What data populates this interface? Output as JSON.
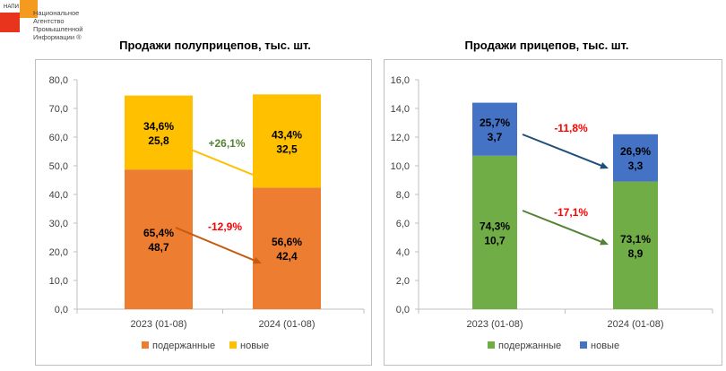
{
  "logo": {
    "abbr": "НАПИ",
    "org_lines": [
      "Национальное",
      "Агентство",
      "Промышленной",
      "Информации ®"
    ]
  },
  "colors": {
    "used_orange": "#ed7d31",
    "new_yellow": "#ffc000",
    "used_green": "#70ad47",
    "new_blue": "#4472c4",
    "up_label": "#548235",
    "down_label": "#ff0000",
    "arrow_yellow": "#ffc000",
    "arrow_brown": "#c55a11",
    "arrow_navy": "#1f4e79",
    "arrow_green": "#548235"
  },
  "chart_data": [
    {
      "type": "bar",
      "stacked": true,
      "title": "Продажи полуприцепов, тыс. шт.",
      "categories": [
        "2023 (01-08)",
        "2024 (01-08)"
      ],
      "series": [
        {
          "name": "подержанные",
          "values": [
            48.7,
            42.4
          ],
          "shares": [
            "65,4%",
            "56,6%"
          ],
          "value_labels": [
            "48,7",
            "42,4"
          ]
        },
        {
          "name": "новые",
          "values": [
            25.8,
            32.5
          ],
          "shares": [
            "34,6%",
            "43,4%"
          ],
          "value_labels": [
            "25,8",
            "32,5"
          ]
        }
      ],
      "ylim": [
        0,
        80
      ],
      "yticks": [
        "0,0",
        "10,0",
        "20,0",
        "30,0",
        "40,0",
        "50,0",
        "60,0",
        "70,0",
        "80,0"
      ],
      "annotations": [
        {
          "text": "+26,1%",
          "series": "новые",
          "trend": "up"
        },
        {
          "text": "-12,9%",
          "series": "подержанные",
          "trend": "down"
        }
      ],
      "legend": "bottom"
    },
    {
      "type": "bar",
      "stacked": true,
      "title": "Продажи прицепов, тыс. шт.",
      "categories": [
        "2023 (01-08)",
        "2024 (01-08)"
      ],
      "series": [
        {
          "name": "подержанные",
          "values": [
            10.7,
            8.9
          ],
          "shares": [
            "74,3%",
            "73,1%"
          ],
          "value_labels": [
            "10,7",
            "8,9"
          ]
        },
        {
          "name": "новые",
          "values": [
            3.7,
            3.3
          ],
          "shares": [
            "25,7%",
            "26,9%"
          ],
          "value_labels": [
            "3,7",
            "3,3"
          ]
        }
      ],
      "ylim": [
        0,
        16
      ],
      "yticks": [
        "0,0",
        "2,0",
        "4,0",
        "6,0",
        "8,0",
        "10,0",
        "12,0",
        "14,0",
        "16,0"
      ],
      "annotations": [
        {
          "text": "-11,8%",
          "series": "новые",
          "trend": "down"
        },
        {
          "text": "-17,1%",
          "series": "подержанные",
          "trend": "down"
        }
      ],
      "legend": "bottom"
    }
  ]
}
